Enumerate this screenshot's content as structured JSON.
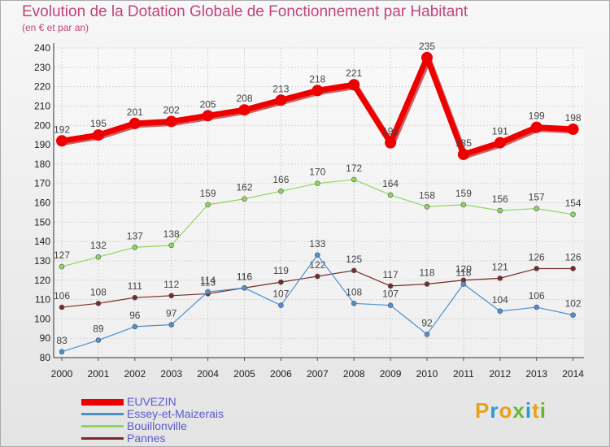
{
  "logo": {
    "text": "Proxiti",
    "colors": [
      "#e8a21a",
      "#2a9ad6",
      "#e8a21a",
      "#62b92d",
      "#2a9ad6",
      "#e8a21a",
      "#62b92d"
    ]
  },
  "chart_data": {
    "type": "line",
    "title": "Evolution de la Dotation Globale de Fonctionnement par Habitant",
    "subtitle": "(en € et par an)",
    "xlabel": "",
    "ylabel": "",
    "ylim": [
      80,
      240
    ],
    "yticks": [
      80,
      90,
      100,
      110,
      120,
      130,
      140,
      150,
      160,
      170,
      180,
      190,
      200,
      210,
      220,
      230,
      240
    ],
    "categories": [
      "2000",
      "2001",
      "2002",
      "2003",
      "2004",
      "2005",
      "2006",
      "2007",
      "2008",
      "2009",
      "2010",
      "2011",
      "2012",
      "2013",
      "2014"
    ],
    "series": [
      {
        "name": "EUVEZIN",
        "color": "#ee0000",
        "values": [
          192,
          195,
          201,
          202,
          205,
          208,
          213,
          218,
          221,
          191,
          235,
          185,
          191,
          199,
          198
        ]
      },
      {
        "name": "Essey-et-Maizerais",
        "color": "#4d8fd1",
        "values": [
          83,
          89,
          96,
          97,
          114,
          116,
          107,
          133,
          108,
          107,
          92,
          118,
          104,
          106,
          102
        ]
      },
      {
        "name": "Bouillonville",
        "color": "#8fd660",
        "values": [
          127,
          132,
          137,
          138,
          159,
          162,
          166,
          170,
          172,
          164,
          158,
          159,
          156,
          157,
          154
        ]
      },
      {
        "name": "Pannes",
        "color": "#7a2a2a",
        "values": [
          106,
          108,
          111,
          112,
          113,
          116,
          119,
          122,
          125,
          117,
          118,
          120,
          121,
          126,
          126
        ]
      }
    ]
  }
}
